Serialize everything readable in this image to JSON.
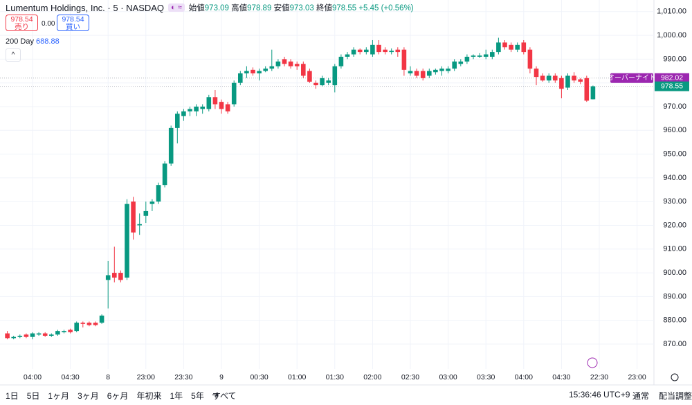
{
  "header": {
    "title": "Lumentum Holdings, Inc. · 5 · NASDAQ",
    "legend": {
      "open_label": "始値",
      "open": "973.09",
      "high_label": "高値",
      "high": "978.89",
      "low_label": "安値",
      "low": "973.03",
      "close_label": "終値",
      "close": "978.55",
      "change": "+5.45 (+0.56%)"
    },
    "sell": {
      "price": "978.54",
      "label": "売り"
    },
    "spread": "0.00",
    "buy": {
      "price": "978.54",
      "label": "買い"
    },
    "indicator": {
      "name": "200 Day",
      "value": "688.88"
    }
  },
  "chart_data": {
    "type": "candlestick",
    "up_color": "#089981",
    "down_color": "#f23645",
    "categories": [
      null,
      null,
      null,
      null,
      "04:00",
      null,
      null,
      null,
      null,
      null,
      "04:30",
      null,
      null,
      null,
      null,
      null,
      "8",
      null,
      null,
      null,
      null,
      null,
      "23:00",
      null,
      null,
      null,
      null,
      null,
      "23:30",
      null,
      null,
      null,
      null,
      null,
      "9",
      null,
      null,
      null,
      null,
      null,
      "00:30",
      null,
      null,
      null,
      null,
      null,
      "01:00",
      null,
      null,
      null,
      null,
      null,
      "01:30",
      null,
      null,
      null,
      null,
      null,
      "02:00",
      null,
      null,
      null,
      null,
      null,
      "02:30",
      null,
      null,
      null,
      null,
      null,
      "03:00",
      null,
      null,
      null,
      null,
      null,
      "03:30",
      null,
      null,
      null,
      null,
      null,
      "04:00",
      null,
      null,
      null,
      null,
      null,
      "04:30",
      null,
      null,
      null,
      null,
      null,
      "22:30",
      null,
      null,
      null,
      null,
      null,
      "23:00"
    ],
    "open": [
      874.5,
      872.5,
      873,
      874,
      873,
      874,
      874.5,
      873.5,
      874,
      875,
      876,
      875.5,
      879,
      879,
      879,
      879,
      897,
      900,
      900,
      898,
      930,
      920,
      924,
      929,
      930,
      937,
      946,
      961,
      966,
      968,
      968,
      969,
      969,
      974,
      972,
      971,
      971,
      980,
      984,
      985.5,
      984,
      985,
      986,
      987,
      990,
      989,
      988,
      988,
      985,
      980,
      979,
      980,
      979,
      987,
      991,
      992,
      994,
      993,
      992,
      996,
      994,
      993,
      994,
      994,
      984,
      985,
      985,
      983,
      984.5,
      985,
      985,
      986,
      988,
      989,
      991,
      991,
      991,
      991,
      993,
      997,
      996,
      994,
      997,
      994,
      986,
      983,
      981,
      983,
      982,
      978,
      983,
      981.5,
      982,
      973.09,
      null,
      null,
      null,
      null,
      null,
      null,
      null
    ],
    "high": [
      875.5,
      873.5,
      874,
      874.5,
      875,
      875,
      875,
      874.5,
      876,
      876,
      876.5,
      879.5,
      879.5,
      879.5,
      879.5,
      882.5,
      905,
      911,
      901,
      931,
      932,
      925,
      930,
      931,
      938,
      947,
      962,
      968,
      969,
      970,
      971,
      971,
      975,
      977,
      973,
      972,
      981,
      985,
      987,
      986.5,
      986,
      987,
      994,
      990,
      991,
      990,
      989,
      989,
      986,
      981,
      983,
      982,
      988,
      992,
      993,
      995,
      994.5,
      995,
      998,
      998,
      995,
      994.5,
      995,
      995,
      987,
      986,
      986,
      986,
      986,
      987,
      987,
      990,
      990,
      992,
      992,
      992.5,
      994,
      994,
      999,
      998,
      997,
      997,
      998,
      995,
      987,
      984,
      984,
      984,
      983,
      984,
      984.5,
      982,
      983,
      978.89,
      null,
      null,
      null,
      null,
      null,
      null,
      null
    ],
    "low": [
      872,
      872,
      872.5,
      872.5,
      872,
      873.5,
      873,
      873,
      873.5,
      874.5,
      874.5,
      875,
      877,
      877.5,
      877.5,
      878.5,
      885,
      896,
      896,
      897,
      914,
      916,
      921,
      926,
      929,
      936,
      945,
      954.5,
      964,
      966,
      966,
      967,
      968,
      969,
      967,
      967,
      970,
      979,
      982,
      983,
      981,
      984.5,
      985,
      986,
      987,
      986,
      985.5,
      982,
      980,
      977.5,
      978.5,
      979,
      976,
      986,
      990,
      991,
      992,
      992,
      991,
      992,
      992,
      992,
      991,
      983,
      983,
      982,
      981,
      982,
      983.5,
      983,
      984,
      985,
      987,
      988,
      990,
      990.5,
      990,
      990,
      992,
      994,
      993,
      993,
      992,
      984,
      979,
      980.5,
      980,
      980,
      973.5,
      977,
      980,
      979.5,
      972,
      973.03,
      null,
      null,
      null,
      null,
      null,
      null,
      null
    ],
    "close": [
      872.5,
      873,
      873.5,
      873,
      874.5,
      874.5,
      873.5,
      874,
      875.5,
      875.5,
      875,
      879,
      878.5,
      878,
      878,
      882,
      899,
      898,
      897,
      929,
      917,
      920.5,
      926,
      930,
      937,
      946,
      961,
      967,
      968,
      969,
      970,
      970,
      974,
      971,
      969,
      968,
      980,
      984,
      985,
      984,
      985,
      986,
      987,
      989,
      988,
      987,
      987,
      983,
      980.5,
      979,
      982,
      981,
      987,
      991,
      992,
      994,
      993,
      994,
      996,
      993,
      993,
      993.5,
      993,
      985.5,
      985,
      983,
      982,
      985,
      985.5,
      986,
      986,
      989,
      989,
      991,
      991.5,
      991.5,
      992,
      993,
      997,
      995,
      994,
      996,
      993,
      986,
      982.5,
      981,
      983,
      981,
      977.5,
      983,
      981,
      980.5,
      972.5,
      978.55,
      null,
      null,
      null,
      null,
      null,
      null,
      null
    ],
    "ylim": [
      859.5,
      1014.9
    ],
    "yticks": [
      {
        "value": 870,
        "label": "870.00"
      },
      {
        "value": 880,
        "label": "880.00"
      },
      {
        "value": 890,
        "label": "890.00"
      },
      {
        "value": 900,
        "label": "900.00"
      },
      {
        "value": 910,
        "label": "910.00"
      },
      {
        "value": 920,
        "label": "920.00"
      },
      {
        "value": 930,
        "label": "930.00"
      },
      {
        "value": 940,
        "label": "940.00"
      },
      {
        "value": 950,
        "label": "950.00"
      },
      {
        "value": 960,
        "label": "960.00"
      },
      {
        "value": 970,
        "label": "970.00"
      },
      {
        "value": 980,
        "label": "980.00"
      },
      {
        "value": 990,
        "label": "990.00"
      },
      {
        "value": 1000,
        "label": "1,000.00"
      },
      {
        "value": 1010,
        "label": "1,010.00"
      }
    ],
    "grid": true,
    "overnight": {
      "label": "オーバーナイト",
      "value": 982.02,
      "color": "#9c27b0"
    },
    "last": {
      "value": 978.55,
      "color": "#089981"
    }
  },
  "toolbar": {
    "ranges": [
      "1日",
      "5日",
      "1ヶ月",
      "3ヶ月",
      "6ヶ月",
      "年初来",
      "1年",
      "5年",
      "すべて"
    ],
    "clock": "15:36:46 UTC+9",
    "session": "通常",
    "adjust": "配当調整"
  }
}
